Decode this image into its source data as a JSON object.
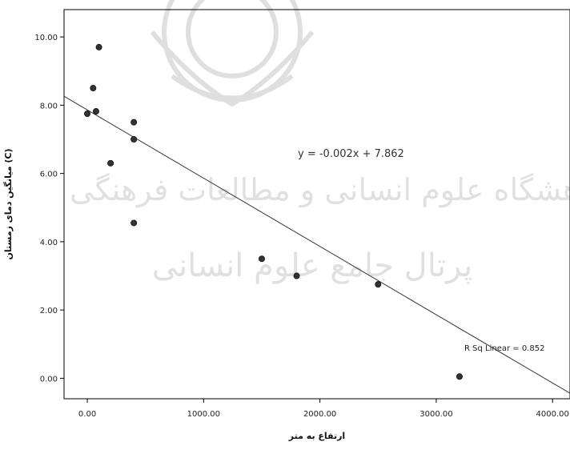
{
  "chart_data": {
    "type": "scatter",
    "title": "",
    "xlabel": "ارتفاع به متر",
    "ylabel": "میانگین دمای زمستان (C)",
    "xlim": [
      -200,
      4150
    ],
    "ylim": [
      -0.6,
      10.8
    ],
    "x_ticks": [
      "0.00",
      "1000.00",
      "2000.00",
      "3000.00",
      "4000.00"
    ],
    "y_ticks": [
      "0.00",
      "2.00",
      "4.00",
      "6.00",
      "8.00",
      "10.00"
    ],
    "x_tick_values": [
      0,
      1000,
      2000,
      3000,
      4000
    ],
    "y_tick_values": [
      0,
      2,
      4,
      6,
      8,
      10
    ],
    "points": [
      {
        "x": 0,
        "y": 7.75
      },
      {
        "x": 50,
        "y": 8.5
      },
      {
        "x": 75,
        "y": 7.82
      },
      {
        "x": 100,
        "y": 9.7
      },
      {
        "x": 200,
        "y": 6.3
      },
      {
        "x": 400,
        "y": 7.5
      },
      {
        "x": 400,
        "y": 7.0
      },
      {
        "x": 400,
        "y": 4.55
      },
      {
        "x": 1500,
        "y": 3.5
      },
      {
        "x": 1800,
        "y": 3.0
      },
      {
        "x": 2500,
        "y": 2.75
      },
      {
        "x": 3200,
        "y": 0.05
      }
    ],
    "fit_line": {
      "slope": -0.002,
      "intercept": 7.862
    },
    "equation_label": "y = -0.002x + 7.862",
    "r2_label": "R Sq Linear = 0.852",
    "grid": false,
    "watermark_text": [
      "پژوهشگاه علوم انسانی و مطالعات فرهنگی",
      "پرتال جامع علوم انسانی"
    ]
  }
}
